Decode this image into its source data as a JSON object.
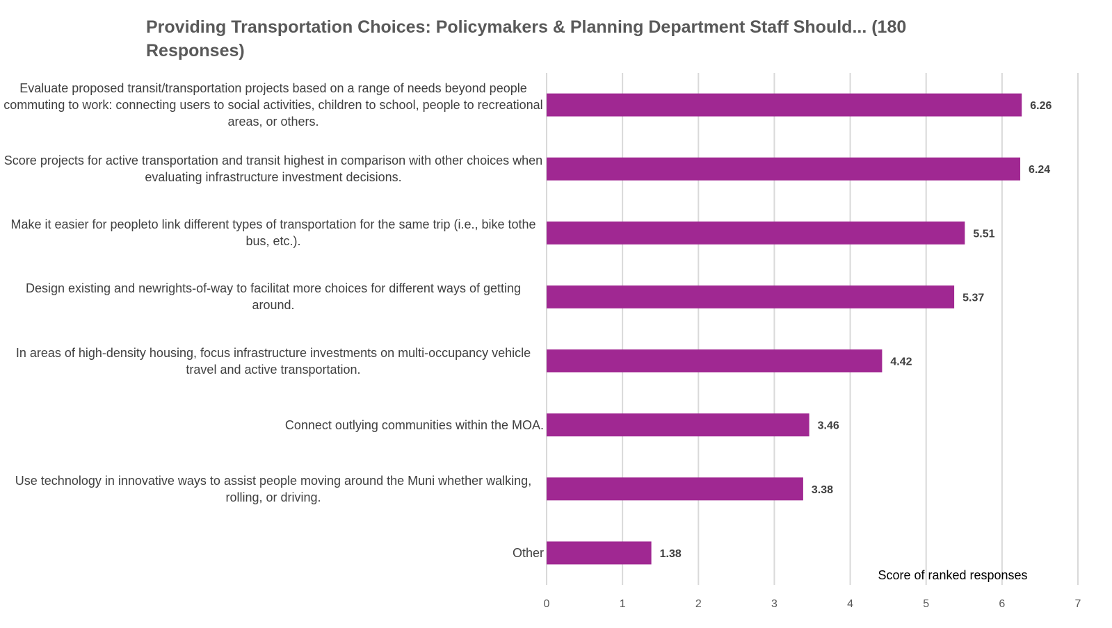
{
  "chart_data": {
    "type": "bar",
    "orientation": "horizontal",
    "title": "Providing Transportation Choices: Policymakers & Planning Department Staff Should... (180 Responses)",
    "xlabel": "Score of ranked responses",
    "ylabel": "",
    "xlim": [
      0,
      7
    ],
    "xticks": [
      0,
      1,
      2,
      3,
      4,
      5,
      6,
      7
    ],
    "grid": true,
    "bar_color": "#a02892",
    "categories": [
      "Evaluate proposed transit/transportation projects based on a range of needs beyond people commuting to work: connecting users to social activities, children to school, people to recreational areas, or others.",
      "Score projects for active transportation and transit highest in comparison with other choices when evaluating infrastructure investment decisions.",
      "Make it easier for peopleto link different types of transportation for the same trip (i.e., bike tothe bus, etc.).",
      "Design existing and newrights-of-way to facilitat more choices for different ways of getting around.",
      "In areas of high-density housing, focus infrastructure investments on multi-occupancy vehicle travel and active transportation.",
      "Connect outlying communities within the MOA.",
      "Use technology in innovative ways to assist people moving around the Muni whether walking, rolling, or driving.",
      "Other"
    ],
    "values": [
      6.26,
      6.24,
      5.51,
      5.37,
      4.42,
      3.46,
      3.38,
      1.38
    ],
    "value_labels": [
      "6.26",
      "6.24",
      "5.51",
      "5.37",
      "4.42",
      "3.46",
      "3.38",
      "1.38"
    ]
  }
}
